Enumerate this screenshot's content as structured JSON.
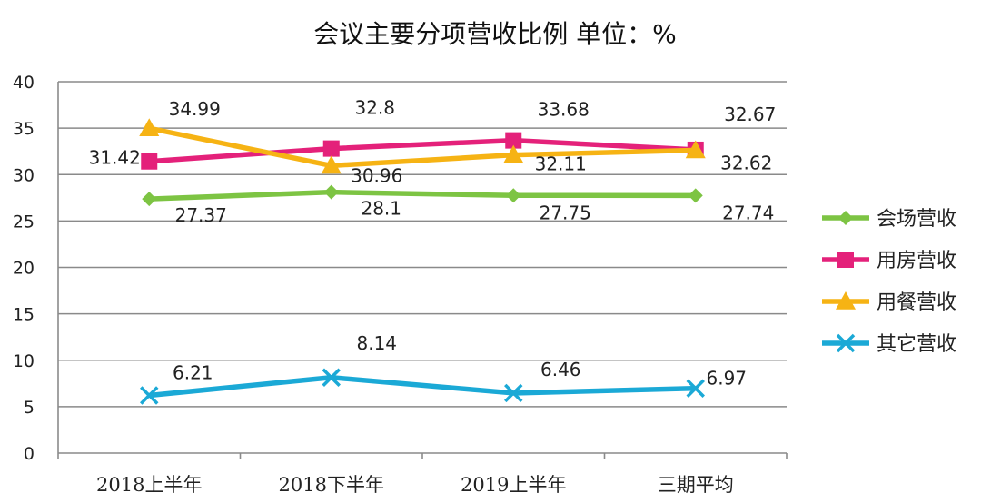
{
  "chart_data": {
    "type": "line",
    "title": "会议主要分项营收比例  单位：%",
    "categories": [
      "2018上半年",
      "2018下半年",
      "2019上半年",
      "三期平均"
    ],
    "ylim": [
      0,
      40
    ],
    "yticks": [
      0,
      5,
      10,
      15,
      20,
      25,
      30,
      35,
      40
    ],
    "grid": true,
    "legend_position": "right",
    "series": [
      {
        "name": "会场营收",
        "values": [
          27.37,
          28.1,
          27.75,
          27.74
        ],
        "labels": [
          "27.37",
          "28.1",
          "27.75",
          "27.74"
        ],
        "color": "#7DC443",
        "marker": "diamond"
      },
      {
        "name": "用房营收",
        "values": [
          31.42,
          32.8,
          33.68,
          32.67
        ],
        "labels": [
          "31.42",
          "32.8",
          "33.68",
          "32.67"
        ],
        "color": "#E4217A",
        "marker": "square"
      },
      {
        "name": "用餐营收",
        "values": [
          34.99,
          30.96,
          32.11,
          32.62
        ],
        "labels": [
          "34.99",
          "30.96",
          "32.11",
          "32.62"
        ],
        "color": "#F6B314",
        "marker": "triangle"
      },
      {
        "name": "其它营收",
        "values": [
          6.21,
          8.14,
          6.46,
          6.97
        ],
        "labels": [
          "6.21",
          "8.14",
          "6.46",
          "6.97"
        ],
        "color": "#1BA9D6",
        "marker": "x"
      }
    ]
  }
}
